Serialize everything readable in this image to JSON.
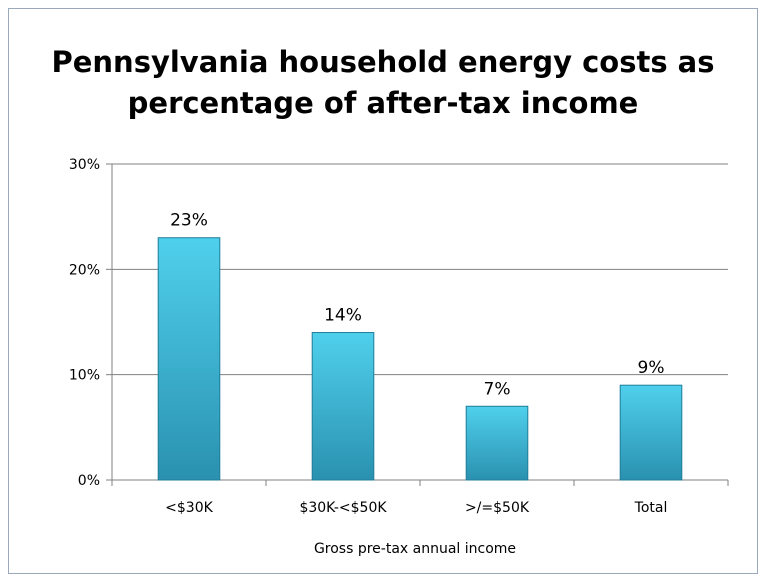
{
  "chart_data": {
    "type": "bar",
    "title": "Pennsylvania household energy costs as\npercentage of after-tax income",
    "categories": [
      "<$30K",
      "$30K-<$50K",
      ">/=$50K",
      "Total"
    ],
    "values": [
      23,
      14,
      7,
      9
    ],
    "data_labels": [
      "23%",
      "14%",
      "7%",
      "9%"
    ],
    "xlabel": "Gross pre-tax annual income",
    "ylabel": "",
    "ylim": [
      0,
      30
    ],
    "yticks": [
      0,
      10,
      20,
      30
    ],
    "ytick_labels": [
      "0%",
      "10%",
      "20%",
      "30%"
    ],
    "grid": true,
    "legend": "none",
    "colors": {
      "bar_top": "#4fd0ec",
      "bar_bottom": "#2a91b0",
      "bar_edge": "#1f7d99",
      "gridline": "#808080",
      "axis": "#808080"
    }
  }
}
